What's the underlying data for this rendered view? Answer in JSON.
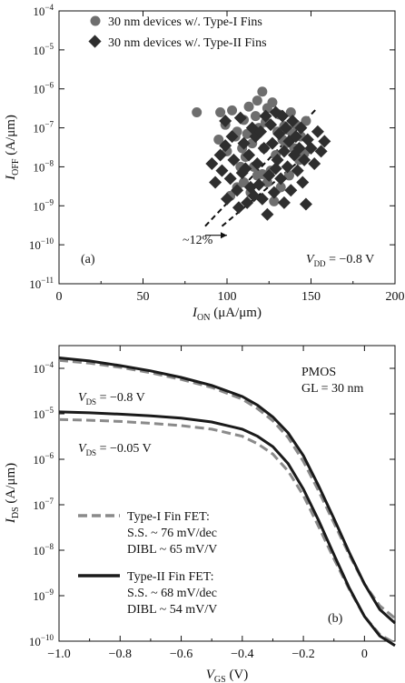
{
  "chart_data": [
    {
      "type": "scatter",
      "panel_label": "(a)",
      "ylabel": "I_OFF (A/μm)",
      "ylabel_main": "I",
      "ylabel_sub": "OFF",
      "ylabel_rest": " (A/μm)",
      "xlabel": "I_ON (μA/μm)",
      "xlabel_main": "I",
      "xlabel_sub": "ON",
      "xlabel_rest": " (μA/μm)",
      "xlim": [
        0,
        200
      ],
      "ylim_exp": [
        -11,
        -4
      ],
      "yscale": "log",
      "xticks": [
        "0",
        "50",
        "100",
        "150",
        "200"
      ],
      "yticks": [
        {
          "exp": -4,
          "label": "10",
          "sup": "−4"
        },
        {
          "exp": -5,
          "label": "10",
          "sup": "−5"
        },
        {
          "exp": -6,
          "label": "10",
          "sup": "−6"
        },
        {
          "exp": -7,
          "label": "10",
          "sup": "−7"
        },
        {
          "exp": -8,
          "label": "10",
          "sup": "−8"
        },
        {
          "exp": -9,
          "label": "10",
          "sup": "−9"
        },
        {
          "exp": -10,
          "label": "10",
          "sup": "−10"
        },
        {
          "exp": -11,
          "label": "10",
          "sup": "−11"
        }
      ],
      "legend": [
        {
          "label": "30 nm devices w/. Type-I Fins",
          "marker": "circle"
        },
        {
          "label": "30 nm devices w/. Type-II Fins",
          "marker": "diamond"
        }
      ],
      "annotation_shift": "~12%",
      "annotation_vdd_main": "V",
      "annotation_vdd_sub": "DD",
      "annotation_vdd_rest": " = −0.8 V",
      "colors": {
        "type1": "#6e6e6e",
        "type2": "#2e2e2e"
      },
      "series": [
        {
          "name": "30 nm devices w/. Type-I Fins",
          "points": [
            [
              82,
              2.5e-07
            ],
            [
              96,
              2.5e-07
            ],
            [
              99,
              1.2e-07
            ],
            [
              103,
              2.8e-07
            ],
            [
              110,
              1.6e-07
            ],
            [
              113,
              3.5e-07
            ],
            [
              118,
              5e-07
            ],
            [
              121,
              8.5e-07
            ],
            [
              124,
              3.2e-07
            ],
            [
              127,
              4.5e-07
            ],
            [
              131,
              2.2e-07
            ],
            [
              134,
              1.1e-07
            ],
            [
              138,
              2.5e-07
            ],
            [
              141,
              1.2e-07
            ],
            [
              144,
              6e-08
            ],
            [
              147,
              1.5e-07
            ],
            [
              95,
              5e-08
            ],
            [
              100,
              2.5e-08
            ],
            [
              105,
              6e-08
            ],
            [
              108,
              1e-08
            ],
            [
              111,
              1.8e-08
            ],
            [
              115,
              4e-08
            ],
            [
              119,
              1e-07
            ],
            [
              122,
              3e-08
            ],
            [
              126,
              8e-09
            ],
            [
              129,
              2e-08
            ],
            [
              133,
              5e-08
            ],
            [
              136,
              9e-08
            ],
            [
              140,
              3e-08
            ],
            [
              143,
              1.5e-08
            ],
            [
              102,
              1.8e-09
            ],
            [
              106,
              3e-09
            ],
            [
              110,
              4e-09
            ],
            [
              114,
              2.2e-09
            ],
            [
              118,
              6e-09
            ],
            [
              124,
              4e-09
            ],
            [
              128,
              1.3e-09
            ],
            [
              132,
              3e-09
            ],
            [
              137,
              6e-09
            ],
            [
              106,
              8e-08
            ],
            [
              112,
              7e-08
            ],
            [
              117,
              2e-07
            ],
            [
              123,
              1.4e-07
            ],
            [
              130,
              8e-08
            ],
            [
              135,
              4e-08
            ],
            [
              139,
              7e-08
            ],
            [
              146,
              2.2e-08
            ],
            [
              116,
              1e-08
            ],
            [
              121,
              6.5e-09
            ],
            [
              109,
              3e-08
            ]
          ]
        },
        {
          "name": "30 nm devices w/. Type-II Fins",
          "points": [
            [
              91,
              1.2e-08
            ],
            [
              93,
              4e-09
            ],
            [
              96,
              2e-08
            ],
            [
              97,
              8e-09
            ],
            [
              99,
              3.5e-08
            ],
            [
              100,
              1.5e-09
            ],
            [
              102,
              5e-09
            ],
            [
              104,
              1.5e-08
            ],
            [
              106,
              2.5e-09
            ],
            [
              107,
              9e-10
            ],
            [
              109,
              7e-09
            ],
            [
              110,
              4e-08
            ],
            [
              112,
              1.2e-09
            ],
            [
              113,
              2e-08
            ],
            [
              114,
              3e-09
            ],
            [
              115,
              1e-07
            ],
            [
              117,
              6e-08
            ],
            [
              118,
              1.2e-08
            ],
            [
              119,
              3.5e-09
            ],
            [
              120,
              8e-08
            ],
            [
              121,
              1.5e-09
            ],
            [
              122,
              3e-08
            ],
            [
              123,
              2e-07
            ],
            [
              125,
              6e-09
            ],
            [
              126,
              1.2e-07
            ],
            [
              127,
              4e-08
            ],
            [
              128,
              2.2e-09
            ],
            [
              129,
              2.5e-07
            ],
            [
              130,
              1.5e-08
            ],
            [
              131,
              7e-08
            ],
            [
              132,
              5e-09
            ],
            [
              133,
              2e-07
            ],
            [
              134,
              2.5e-08
            ],
            [
              135,
              1e-07
            ],
            [
              136,
              1e-08
            ],
            [
              137,
              4.5e-08
            ],
            [
              138,
              2.5e-09
            ],
            [
              139,
              1.5e-07
            ],
            [
              140,
              2e-08
            ],
            [
              141,
              6e-08
            ],
            [
              142,
              8e-09
            ],
            [
              143,
              3e-08
            ],
            [
              144,
              1e-07
            ],
            [
              145,
              4e-09
            ],
            [
              146,
              1.5e-08
            ],
            [
              148,
              5e-08
            ],
            [
              150,
              3e-08
            ],
            [
              152,
              1.2e-08
            ],
            [
              154,
              8e-08
            ],
            [
              156,
              2.5e-08
            ],
            [
              158,
              4.5e-08
            ],
            [
              103,
              6e-08
            ],
            [
              108,
              1.8e-07
            ],
            [
              111,
              9e-09
            ],
            [
              124,
              6e-10
            ],
            [
              116,
              1.8e-09
            ],
            [
              129,
              9e-09
            ],
            [
              134,
              1.2e-09
            ],
            [
              147,
              1.1e-09
            ],
            [
              99,
              1.5e-07
            ]
          ]
        }
      ],
      "guides": [
        {
          "x": [
            87,
            153
          ],
          "y": [
            3e-10,
            3e-07
          ]
        },
        {
          "x": [
            97,
            152
          ],
          "y": [
            3e-10,
            3e-08
          ]
        }
      ],
      "shift_arrow": {
        "x": [
          87,
          100
        ],
        "y": [
          3e-10,
          3e-10
        ]
      }
    },
    {
      "type": "line",
      "panel_label": "(b)",
      "ylabel": "I_DS (A/μm)",
      "ylabel_main": "I",
      "ylabel_sub": "DS",
      "ylabel_rest": " (A/μm)",
      "xlabel": "V_GS (V)",
      "xlabel_main": "V",
      "xlabel_sub": "GS",
      "xlabel_rest": " (V)",
      "xlim": [
        -1.0,
        0.1
      ],
      "ylim_exp": [
        -10,
        -3.5
      ],
      "yscale": "log",
      "xticks": [
        {
          "v": -1.0,
          "label": "−1.0"
        },
        {
          "v": -0.8,
          "label": "−0.8"
        },
        {
          "v": -0.6,
          "label": "−0.6"
        },
        {
          "v": -0.4,
          "label": "−0.4"
        },
        {
          "v": -0.2,
          "label": "−0.2"
        },
        {
          "v": 0,
          "label": "0"
        }
      ],
      "yticks": [
        {
          "exp": -4,
          "label": "10",
          "sup": "−4"
        },
        {
          "exp": -5,
          "label": "10",
          "sup": "−5"
        },
        {
          "exp": -6,
          "label": "10",
          "sup": "−6"
        },
        {
          "exp": -7,
          "label": "10",
          "sup": "−7"
        },
        {
          "exp": -8,
          "label": "10",
          "sup": "−8"
        },
        {
          "exp": -9,
          "label": "10",
          "sup": "−9"
        },
        {
          "exp": -10,
          "label": "10",
          "sup": "−10"
        }
      ],
      "info_line1": "PMOS",
      "info_line2": "GL = 30 nm",
      "vds1_main": "V",
      "vds1_sub": "DS",
      "vds1_rest": " = −0.8 V",
      "vds2_main": "V",
      "vds2_sub": "DS",
      "vds2_rest": " = −0.05 V",
      "legend": [
        {
          "style": "dashed",
          "lines": [
            "Type-I Fin FET:",
            "S.S. ~ 76 mV/dec",
            "DIBL ~ 65 mV/V"
          ]
        },
        {
          "style": "solid",
          "lines": [
            "Type-II Fin FET:",
            "S.S. ~ 68 mV/dec",
            "DIBL ~ 54 mV/V"
          ]
        }
      ],
      "colors": {
        "type1": "#8a8a8a",
        "type2": "#1a1a1a"
      },
      "series": [
        {
          "name": "Type-I Fin FET",
          "vds": "−0.8 V",
          "style": "dashed",
          "x": [
            -1.0,
            -0.9,
            -0.8,
            -0.7,
            -0.6,
            -0.5,
            -0.4,
            -0.35,
            -0.3,
            -0.25,
            -0.2,
            -0.15,
            -0.1,
            -0.05,
            0,
            0.05,
            0.1
          ],
          "y": [
            0.00015,
            0.00013,
            0.000105,
            8e-05,
            5.7e-05,
            3.8e-05,
            2.1e-05,
            1.3e-05,
            7e-06,
            3e-06,
            9e-07,
            2e-07,
            4e-08,
            8e-09,
            1.8e-09,
            6e-10,
            3.2e-10
          ]
        },
        {
          "name": "Type-II Fin FET",
          "vds": "−0.8 V",
          "style": "solid",
          "x": [
            -1.0,
            -0.9,
            -0.8,
            -0.7,
            -0.6,
            -0.5,
            -0.4,
            -0.35,
            -0.3,
            -0.25,
            -0.2,
            -0.15,
            -0.1,
            -0.05,
            0,
            0.05,
            0.1
          ],
          "y": [
            0.00017,
            0.000145,
            0.000115,
            8.8e-05,
            6.3e-05,
            4.2e-05,
            2.4e-05,
            1.55e-05,
            8.5e-06,
            3.8e-06,
            1.2e-06,
            2.6e-07,
            5e-08,
            9e-09,
            1.8e-09,
            5e-10,
            2.5e-10
          ]
        },
        {
          "name": "Type-I Fin FET",
          "vds": "−0.05 V",
          "style": "dashed",
          "x": [
            -1.0,
            -0.9,
            -0.8,
            -0.7,
            -0.6,
            -0.5,
            -0.4,
            -0.35,
            -0.3,
            -0.25,
            -0.2,
            -0.15,
            -0.1,
            -0.05,
            0,
            0.05,
            0.1
          ],
          "y": [
            7.5e-06,
            7.2e-06,
            6.8e-06,
            6.2e-06,
            5.5e-06,
            4.6e-06,
            3.2e-06,
            2.2e-06,
            1.3e-06,
            5.5e-07,
            1.6e-07,
            3.3e-08,
            6.5e-09,
            1.4e-09,
            3.5e-10,
            1.4e-10,
            9e-11
          ]
        },
        {
          "name": "Type-II Fin FET",
          "vds": "−0.05 V",
          "style": "solid",
          "x": [
            -1.0,
            -0.9,
            -0.8,
            -0.7,
            -0.6,
            -0.5,
            -0.4,
            -0.35,
            -0.3,
            -0.25,
            -0.2,
            -0.15,
            -0.1,
            -0.05,
            0,
            0.05,
            0.1
          ],
          "y": [
            1.1e-05,
            1.05e-05,
            9.8e-06,
            9e-06,
            8e-06,
            6.6e-06,
            4.6e-06,
            3.2e-06,
            1.9e-06,
            8e-07,
            2.2e-07,
            4.5e-08,
            8e-09,
            1.5e-09,
            3.5e-10,
            1.3e-10,
            8e-11
          ]
        }
      ]
    }
  ]
}
